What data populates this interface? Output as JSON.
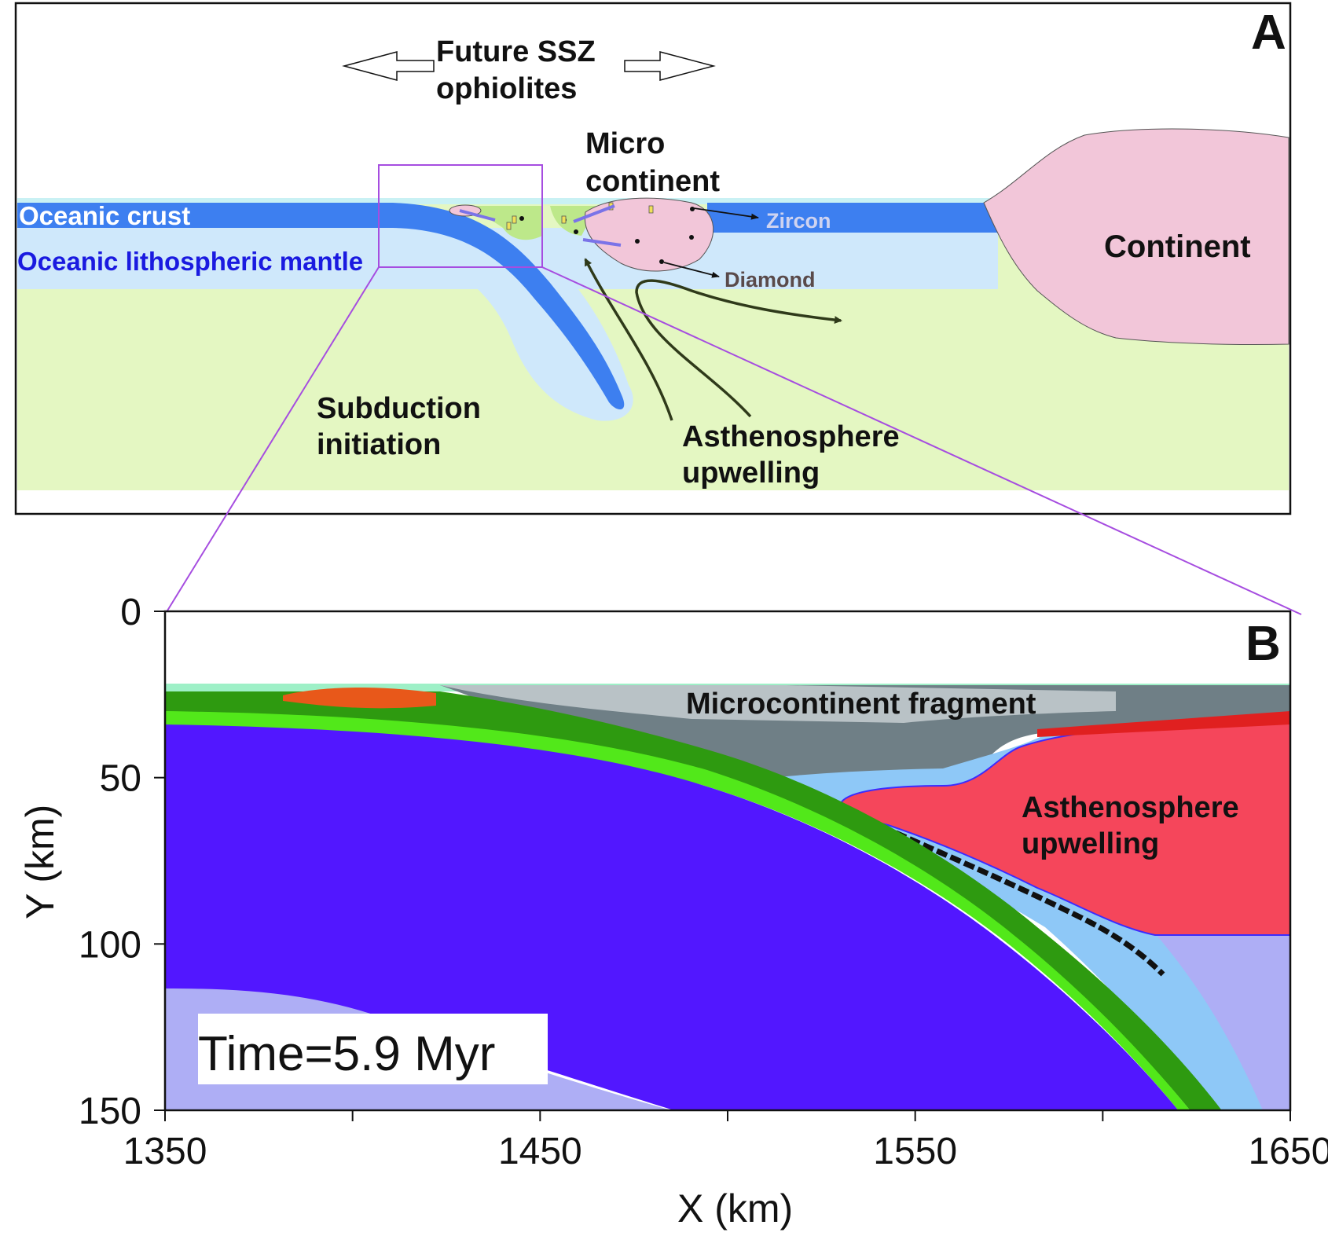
{
  "panel_a": {
    "letter": "A",
    "future_line1": "Future SSZ",
    "future_line2": "ophiolites",
    "micro_line1": "Micro",
    "micro_line2": "continent",
    "oceanic_crust": "Oceanic crust",
    "oceanic_mantle": "Oceanic lithospheric  mantle",
    "zircon": "Zircon",
    "diamond": "Diamond",
    "continent": "Continent",
    "subduction_line1": "Subduction",
    "subduction_line2": "initiation",
    "asthen_line1": "Asthenosphere",
    "asthen_line2": "upwelling"
  },
  "panel_b": {
    "letter": "B",
    "microcontinent_fragment": "Microcontinent fragment",
    "asthen_line1": "Asthenosphere",
    "asthen_line2": "upwelling",
    "time_label": "Time=5.9 Myr",
    "x_axis_label": "X (km)",
    "y_axis_label": "Y (km)",
    "x_ticks": [
      "1350",
      "1450",
      "1550",
      "1650"
    ],
    "y_ticks": [
      "0",
      "50",
      "100",
      "150"
    ],
    "x_range": [
      1350,
      1650
    ],
    "y_range": [
      0,
      150
    ]
  },
  "colors": {
    "asthenosphere_a": "#e4f7c2",
    "oceanic_crust": "#3d7ff0",
    "lithospheric_mantle": "#cfe8fb",
    "continent": "#f2c6d9",
    "zoom_box": "#a64de0",
    "slab_mantle_b": "#5217ff",
    "deep_mantle_b": "#aeaef5",
    "wedge_b": "#8ec8f7",
    "upwelling_b": "#f5465b",
    "crust_green_b": "#2e9a10",
    "crust_lime_b": "#52e81a",
    "fragment_grey_b": "#6f7f86"
  }
}
